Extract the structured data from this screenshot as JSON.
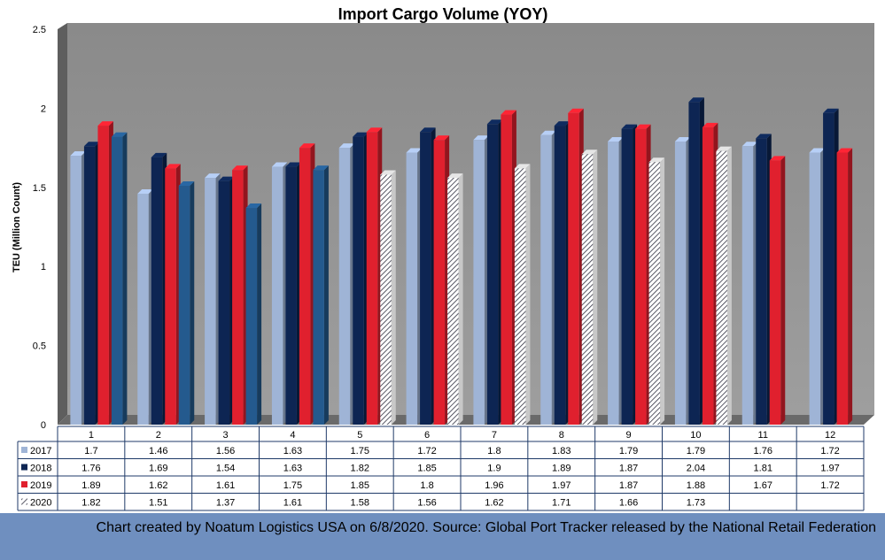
{
  "chart_data": {
    "type": "bar",
    "title": "Import Cargo Volume (YOY)",
    "xlabel": "",
    "ylabel": "TEU (Million Count)",
    "ylim": [
      0,
      2.5
    ],
    "yticks": [
      "0",
      "0.5",
      "1",
      "1.5",
      "2",
      "2.5"
    ],
    "categories": [
      "1",
      "2",
      "3",
      "4",
      "5",
      "6",
      "7",
      "8",
      "9",
      "10",
      "11",
      "12"
    ],
    "grid": false,
    "legend": "data-table",
    "series": [
      {
        "name": "2017",
        "values": [
          1.7,
          1.46,
          1.56,
          1.63,
          1.75,
          1.72,
          1.8,
          1.83,
          1.79,
          1.79,
          1.76,
          1.72
        ],
        "color": "#9fb4d6",
        "labels": [
          "1.7",
          "1.46",
          "1.56",
          "1.63",
          "1.75",
          "1.72",
          "1.8",
          "1.83",
          "1.79",
          "1.79",
          "1.76",
          "1.72"
        ]
      },
      {
        "name": "2018",
        "values": [
          1.76,
          1.69,
          1.54,
          1.63,
          1.82,
          1.85,
          1.9,
          1.89,
          1.87,
          2.04,
          1.81,
          1.97
        ],
        "color": "#0d2553",
        "labels": [
          "1.76",
          "1.69",
          "1.54",
          "1.63",
          "1.82",
          "1.85",
          "1.9",
          "1.89",
          "1.87",
          "2.04",
          "1.81",
          "1.97"
        ]
      },
      {
        "name": "2019",
        "values": [
          1.89,
          1.62,
          1.61,
          1.75,
          1.85,
          1.8,
          1.96,
          1.97,
          1.87,
          1.88,
          1.67,
          1.72
        ],
        "color": "#e0202e",
        "labels": [
          "1.89",
          "1.62",
          "1.61",
          "1.75",
          "1.85",
          "1.8",
          "1.96",
          "1.97",
          "1.87",
          "1.88",
          "1.67",
          "1.72"
        ]
      },
      {
        "name": "2020",
        "values": [
          1.82,
          1.51,
          1.37,
          1.61,
          1.58,
          1.56,
          1.62,
          1.71,
          1.66,
          1.73,
          null,
          null
        ],
        "color": "#245a8e",
        "labels": [
          "1.82",
          "1.51",
          "1.37",
          "1.61",
          "1.58",
          "1.56",
          "1.62",
          "1.71",
          "1.66",
          "1.73",
          "",
          ""
        ]
      }
    ]
  },
  "footer": {
    "text": "Chart created by Noatum Logistics USA on 6/8/2020. Source: Global Port Tracker released by the National Retail Federation"
  }
}
